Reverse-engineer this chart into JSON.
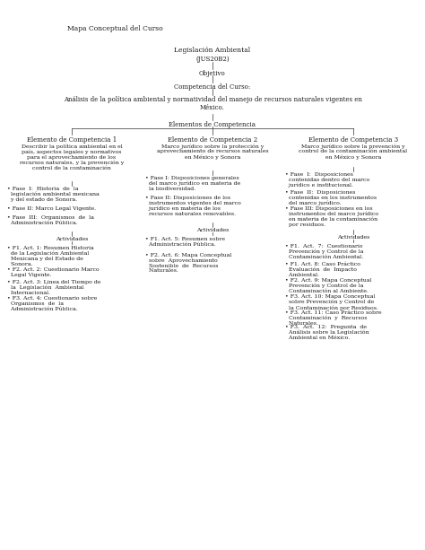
{
  "bg_color": "#ffffff",
  "text_color": "#1a1a1a",
  "title": "Mapa Conceptual del Curso",
  "header": {
    "leg_amb": "Legislación Ambiental",
    "jus": "(JUS20B2)",
    "objetivo": "Objetivo",
    "comp_label": "Competencia del Curso:",
    "comp_text": "Análisis de la política ambiental y normatividad del manejo de recursos naturales vigentes en\nMéxico.",
    "elementos": "Elementos de Competencia"
  },
  "col1": {
    "title": "Elemento de Competencia 1",
    "desc": "Describir la política ambiental en el\npaís, aspectos legales y normativos\npara el aprovechamiento de los\nrecursos naturales, y la prevención y\ncontrol de la contaminación",
    "fase1": "• Fase  I:  Historia  de  la\n  legislación ambiental mexicana\n  y del estado de Sonora.",
    "fase2": "• Fase II: Marco Legal Vigente.",
    "fase3": "• Fase  III:  Organismos  de  la\n  Administración Pública.",
    "act_label": "Actividades",
    "act1": "• F1. Act. 1: Resumen Historia\n  de la Legislación Ambiental\n  Mexicana y del Estado de\n  Sonora.",
    "act2": "• F2. Act. 2: Cuestionario Marco\n  Legal Vigente.",
    "act3": "• F2. Act. 3: Linea del Tiempo de\n  la  Legislación  Ambiental\n  Internacional.",
    "act4": "• F3. Act. 4: Cuestionario sobre\n  Organismos  de  la\n  Administración Pública."
  },
  "col2": {
    "title": "Elemento de Competencia 2",
    "desc": "Marco jurídico sobre la protección y\naprovechamiento de recursos naturales\nen México y Sonora",
    "fase1": "• Fase I: Disposiciones generales\n  del marco jurídico en materia de\n  la biodiversidad.",
    "fase2": "• Fase II: Disposiciones de los\n  instrumentos vigentes del marco\n  jurídico en materia de los\n  recursos naturales renovables.",
    "act_label": "Actividades",
    "act1": "• F1. Act. 5: Resumen sobre\n  Administración Pública.",
    "act2": "• F2. Act. 6: Mapa Conceptual\n  sobre  Aprovechamiento\n  Sostenible  de  Recursos\n  Naturales."
  },
  "col3": {
    "title": "Elemento de Competencia 3",
    "desc": "Marco jurídico sobre la prevención y\ncontrol de la contaminación ambiental\nen México y Sonora",
    "fase1": "• Fase  I:  Disposiciones\n  contenidas dentro del marco\n  jurídico e institucional.",
    "fase2": "• Fase  II:  Disposiciones\n  contenidas en los instrumentos\n  del marco jurídico.",
    "fase3": "• Fase III: Disposiciones en los\n  instrumentos del marco jurídico\n  en materia de la contaminación\n  por residuos.",
    "act_label": "Actividades",
    "act1": "• F1.  Act.  7:  Cuestionario\n  Prevención y Control de la\n  Contaminación Ambiental.",
    "act2": "• F1. Act. 8: Caso Práctico\n  Evaluación  de  Impacto\n  Ambiental.",
    "act3": "• F2. Act. 9: Mapa Conceptual\n  Prevención y Control de la\n  Contaminación al Ambiente.",
    "act4": "• F3. Act. 10: Mapa Conceptual\n  sobre Prevención y Control de\n  la Contaminación por Residuos.",
    "act5": "• F3. Act. 11: Caso Práctico sobre\n  Contaminación  y  Recursos\n  Naturales.",
    "act6": "• F3.  Act.  12:  Pregunta  de\n  Análisis sobre la Legislación\n  Ambiental en México."
  },
  "line_color": "#333333",
  "fs_title": 6.5,
  "fs_main": 5.5,
  "fs_small": 5.0,
  "fs_tiny": 4.5
}
